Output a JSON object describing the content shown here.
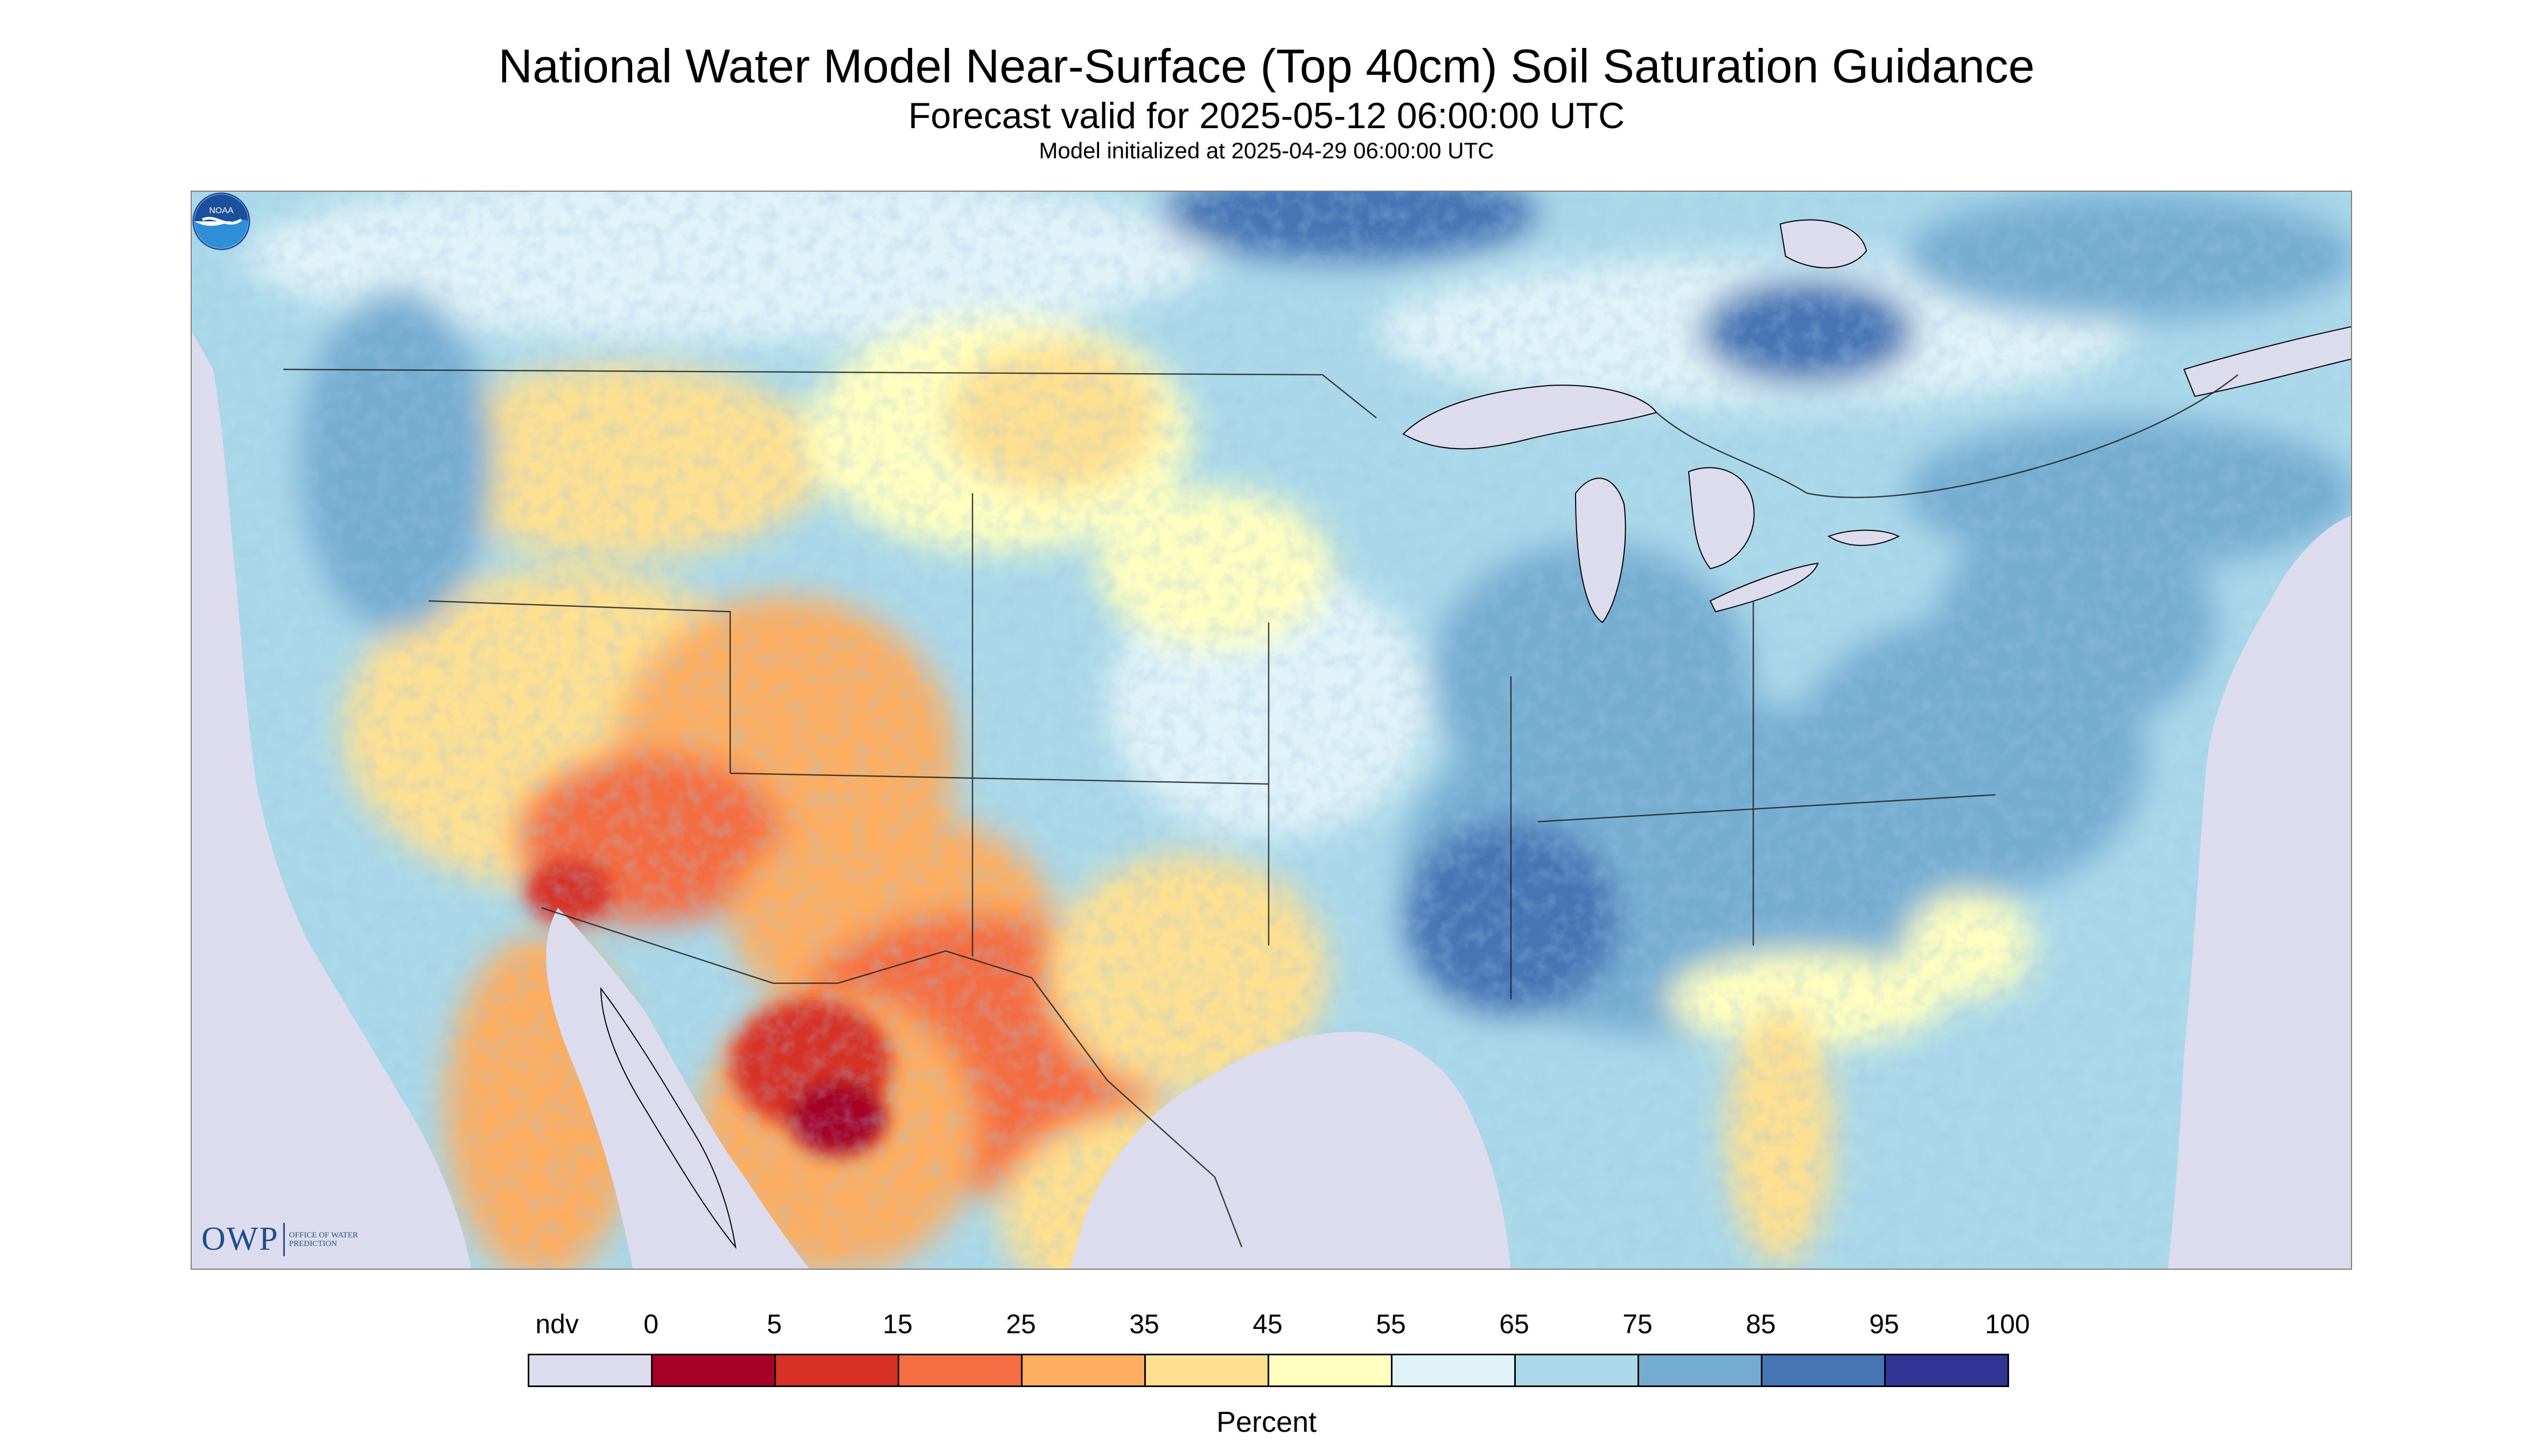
{
  "title": "National Water Model Near-Surface (Top 40cm) Soil Saturation Guidance",
  "subtitle": "Forecast valid for 2025-05-12 06:00:00 UTC",
  "init_line": "Model initialized at 2025-04-29 06:00:00 UTC",
  "map": {
    "region": "Contiguous United States, southern Canada and northern Mexico",
    "no_data_color": "#dcdcee",
    "features": [
      "dry (red/orange) soils across Arizona, New Mexico, west Texas and northern Mexico",
      "moderate (yellow) values over the northern Plains, Great Basin and Florida peninsula",
      "wet (blue) soils over the Mississippi valley, Ohio valley, Northeast and Pacific Northwest"
    ]
  },
  "logos": {
    "owp_letters": "OWP",
    "owp_full": "OFFICE OF WATER PREDICTION",
    "noaa_text": "NOAA"
  },
  "legend": {
    "label": "Percent",
    "ticks": [
      "ndv",
      "0",
      "5",
      "15",
      "25",
      "35",
      "45",
      "55",
      "65",
      "75",
      "85",
      "95",
      "100"
    ],
    "bins": [
      {
        "range": "ndv",
        "color": "#dcdcee"
      },
      {
        "range": "0-5",
        "color": "#a50026"
      },
      {
        "range": "5-15",
        "color": "#d73027"
      },
      {
        "range": "15-25",
        "color": "#f46d43"
      },
      {
        "range": "25-35",
        "color": "#fdae61"
      },
      {
        "range": "35-45",
        "color": "#fee090"
      },
      {
        "range": "45-55",
        "color": "#ffffbf"
      },
      {
        "range": "55-65",
        "color": "#e0f3f8"
      },
      {
        "range": "65-75",
        "color": "#abd9e9"
      },
      {
        "range": "75-85",
        "color": "#74add1"
      },
      {
        "range": "85-95",
        "color": "#4575b4"
      },
      {
        "range": "95-100",
        "color": "#313695"
      }
    ]
  }
}
